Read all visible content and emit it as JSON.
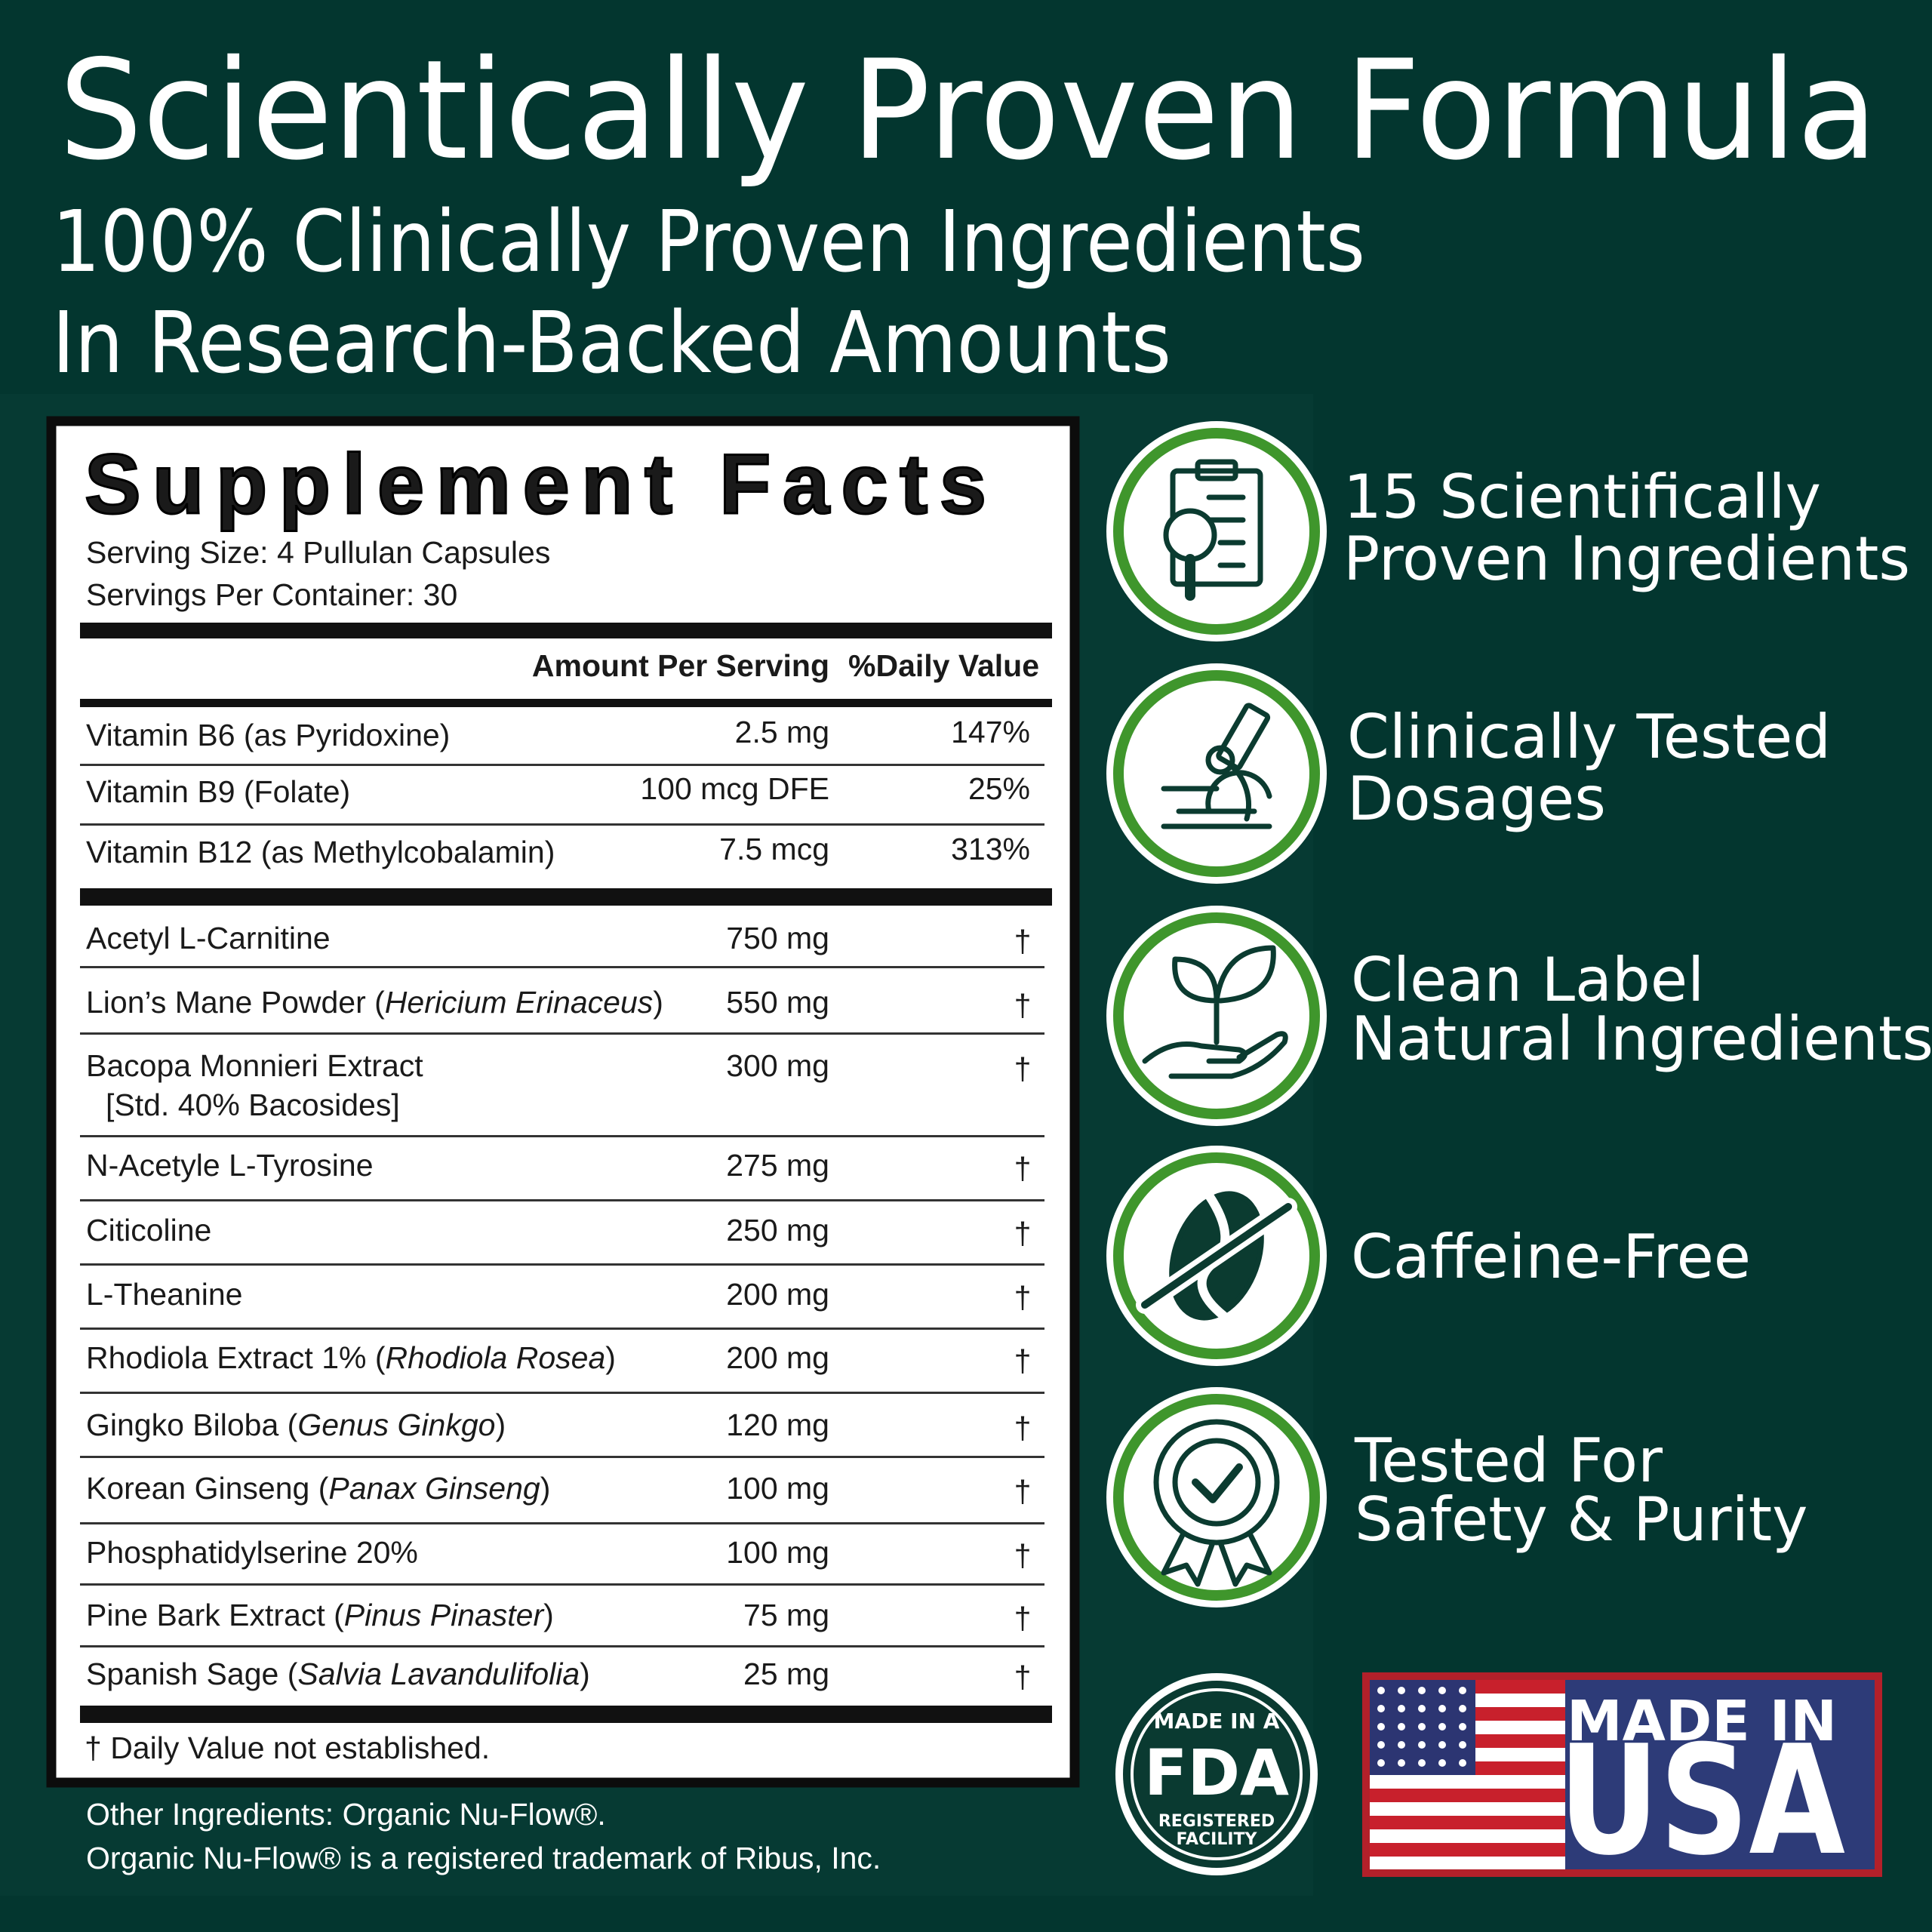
{
  "header": {
    "title": "Scientically Proven Formula",
    "subtitle_lines": [
      "100% Clinically Proven Ingredients",
      "In Research-Backed Amounts"
    ]
  },
  "supplement_facts": {
    "title": "Supplement Facts",
    "serving_lines": [
      "Serving Size: 4 Pullulan Capsules",
      "Servings Per Container: 30"
    ],
    "columns": [
      "Amount Per Serving",
      "%Daily Value"
    ],
    "vitamins": [
      {
        "name": "Vitamin B6 (as Pyridoxine)",
        "amount": "2.5 mg",
        "daily_value": "147%"
      },
      {
        "name": "Vitamin B9 (Folate)",
        "amount": "100 mcg DFE",
        "daily_value": "25%"
      },
      {
        "name": "Vitamin B12 (as Methylcobalamin)",
        "amount": "7.5 mcg",
        "daily_value": "313%"
      }
    ],
    "ingredients": [
      {
        "name_parts": [
          {
            "text": "Acetyl L-Carnitine",
            "italic": false
          }
        ],
        "amount": "750 mg",
        "daily_value": "†"
      },
      {
        "name_parts": [
          {
            "text": "Lion’s Mane Powder (",
            "italic": false
          },
          {
            "text": "Hericium Erinaceus",
            "italic": true
          },
          {
            "text": ")",
            "italic": false
          }
        ],
        "amount": "550 mg",
        "daily_value": "†"
      },
      {
        "name_parts": [
          {
            "text": "Bacopa Monnieri Extract",
            "italic": false
          }
        ],
        "sub_line": "[Std. 40% Bacosides]",
        "amount": "300 mg",
        "daily_value": "†"
      },
      {
        "name_parts": [
          {
            "text": "N-Acetyle L-Tyrosine",
            "italic": false
          }
        ],
        "amount": "275 mg",
        "daily_value": "†"
      },
      {
        "name_parts": [
          {
            "text": "Citicoline",
            "italic": false
          }
        ],
        "amount": "250 mg",
        "daily_value": "†"
      },
      {
        "name_parts": [
          {
            "text": "L-Theanine",
            "italic": false
          }
        ],
        "amount": "200 mg",
        "daily_value": "†"
      },
      {
        "name_parts": [
          {
            "text": "Rhodiola Extract 1% (",
            "italic": false
          },
          {
            "text": "Rhodiola Rosea",
            "italic": true
          },
          {
            "text": ")",
            "italic": false
          }
        ],
        "amount": "200 mg",
        "daily_value": "†"
      },
      {
        "name_parts": [
          {
            "text": "Gingko Biloba (",
            "italic": false
          },
          {
            "text": "Genus Ginkgo",
            "italic": true
          },
          {
            "text": ")",
            "italic": false
          }
        ],
        "amount": "120 mg",
        "daily_value": "†"
      },
      {
        "name_parts": [
          {
            "text": "Korean Ginseng (",
            "italic": false
          },
          {
            "text": "Panax Ginseng",
            "italic": true
          },
          {
            "text": ")",
            "italic": false
          }
        ],
        "amount": "100 mg",
        "daily_value": "†"
      },
      {
        "name_parts": [
          {
            "text": "Phosphatidylserine 20%",
            "italic": false
          }
        ],
        "amount": "100 mg",
        "daily_value": "†"
      },
      {
        "name_parts": [
          {
            "text": "Pine Bark Extract (",
            "italic": false
          },
          {
            "text": "Pinus Pinaster",
            "italic": true
          },
          {
            "text": ")",
            "italic": false
          }
        ],
        "amount": "75 mg",
        "daily_value": "†"
      },
      {
        "name_parts": [
          {
            "text": "Spanish Sage (",
            "italic": false
          },
          {
            "text": "Salvia Lavandulifolia",
            "italic": true
          },
          {
            "text": ")",
            "italic": false
          }
        ],
        "amount": "25 mg",
        "daily_value": "†"
      }
    ],
    "footnote": "† Daily Value not established."
  },
  "other_ingredients": [
    "Other Ingredients: Organic Nu-Flow®.",
    "Organic Nu-Flow® is a registered trademark of Ribus, Inc."
  ],
  "features": [
    {
      "lines": [
        "15 Scientifically",
        "Proven Ingredients"
      ]
    },
    {
      "lines": [
        "Clinically Tested",
        "Dosages"
      ]
    },
    {
      "lines": [
        "Clean Label",
        "Natural Ingredients"
      ]
    },
    {
      "lines": [
        "Caffeine-Free"
      ]
    },
    {
      "lines": [
        "Tested For",
        "Safety & Purity"
      ]
    }
  ],
  "badges": {
    "fda": [
      "MADE IN A",
      "FDA",
      "REGISTERED",
      "FACILITY"
    ],
    "usa": [
      "MADE IN",
      "USA"
    ]
  }
}
